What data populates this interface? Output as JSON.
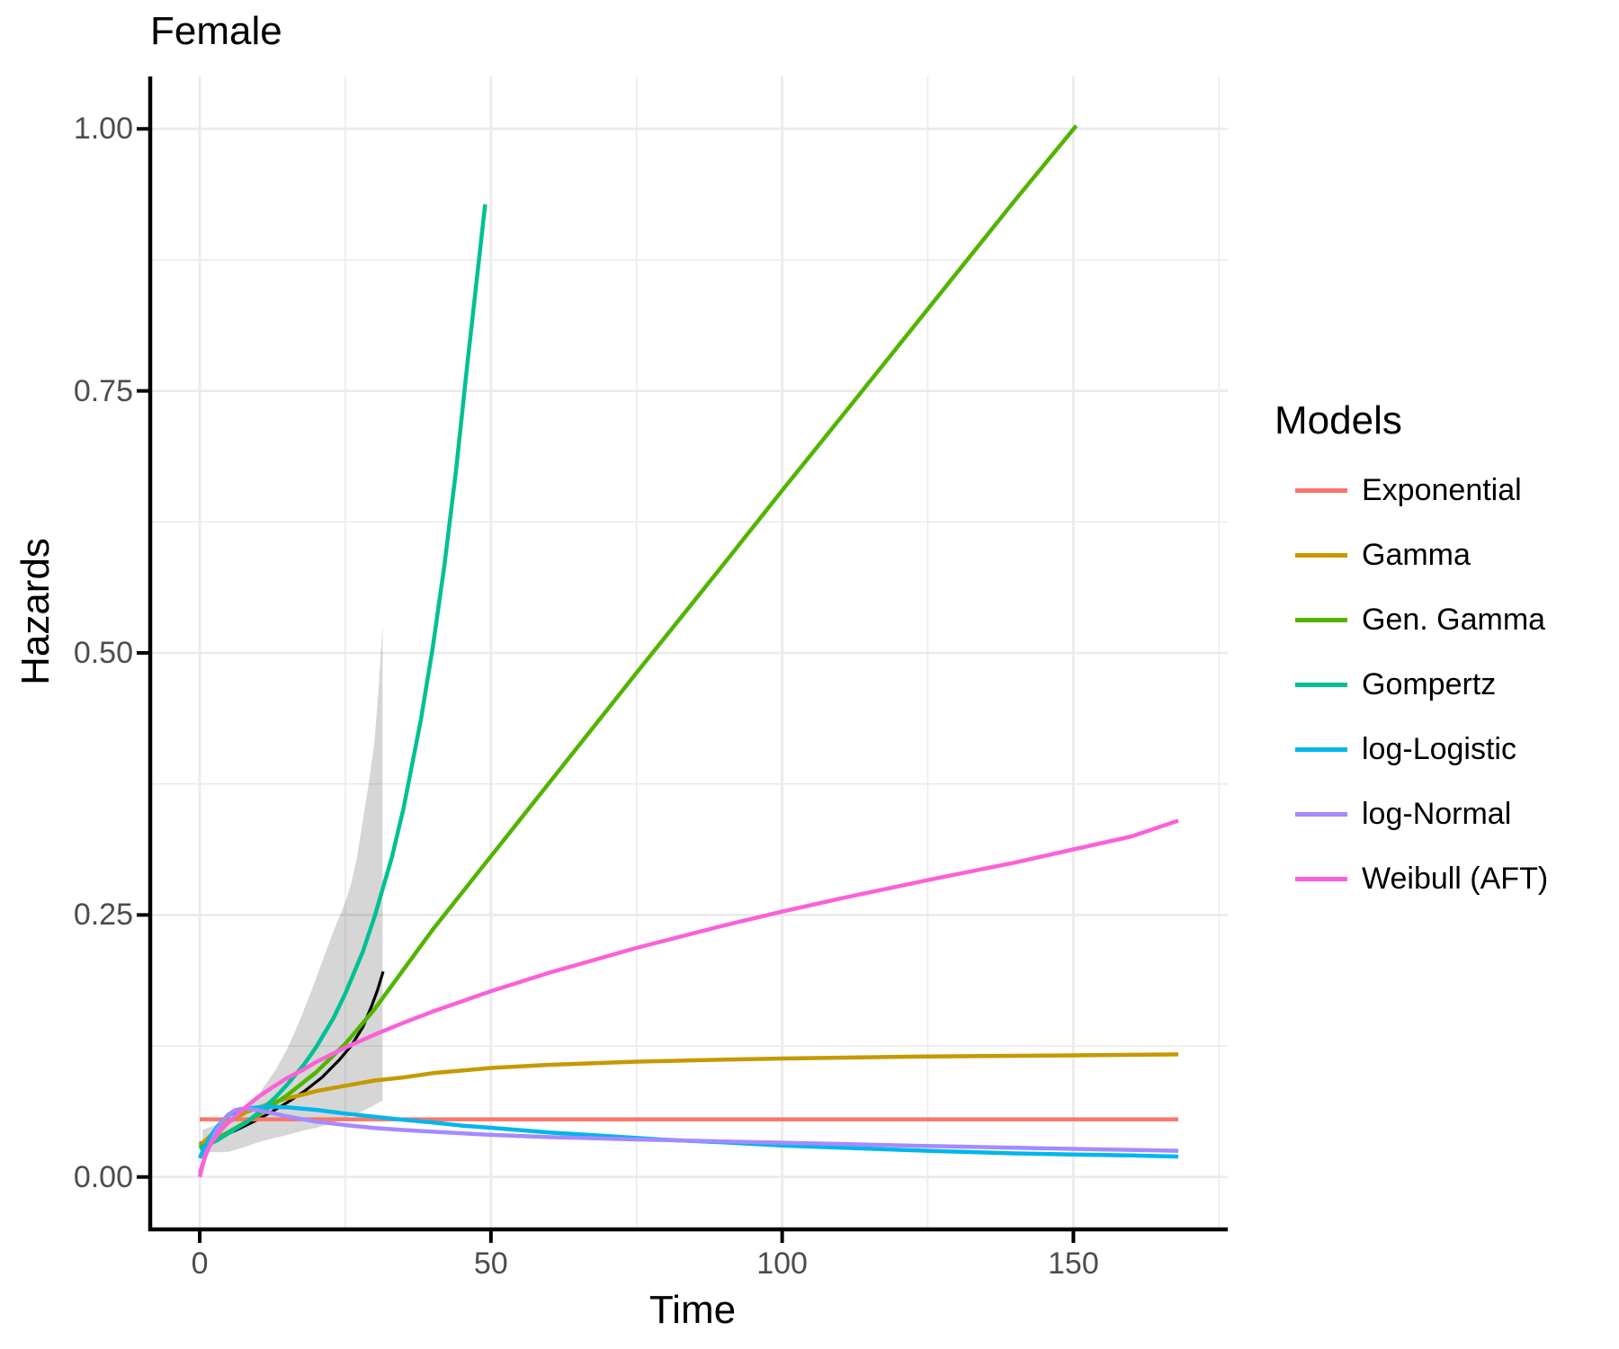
{
  "title": "Female",
  "x_axis": {
    "label": "Time",
    "ticks": [
      {
        "value": 0,
        "label": "0"
      },
      {
        "value": 50,
        "label": "50"
      },
      {
        "value": 100,
        "label": "100"
      },
      {
        "value": 150,
        "label": "150"
      }
    ],
    "minor_ticks": [
      25,
      75,
      125,
      175
    ]
  },
  "y_axis": {
    "label": "Hazards",
    "ticks": [
      {
        "value": 0,
        "label": "0.00"
      },
      {
        "value": 0.25,
        "label": "0.25"
      },
      {
        "value": 0.5,
        "label": "0.50"
      },
      {
        "value": 0.75,
        "label": "0.75"
      },
      {
        "value": 1.0,
        "label": "1.00"
      }
    ],
    "minor_ticks": [
      0.125,
      0.375,
      0.625,
      0.875
    ]
  },
  "legend": {
    "title": "Models",
    "entries": [
      {
        "label": "Exponential",
        "color": "#F8766D"
      },
      {
        "label": "Gamma",
        "color": "#C49A00"
      },
      {
        "label": "Gen. Gamma",
        "color": "#53B400"
      },
      {
        "label": "Gompertz",
        "color": "#00C094"
      },
      {
        "label": "log-Logistic",
        "color": "#00B6EB"
      },
      {
        "label": "log-Normal",
        "color": "#A58AFF"
      },
      {
        "label": "Weibull (AFT)",
        "color": "#FB61D7"
      }
    ]
  },
  "style": {
    "grid_color": "#EBEBEB",
    "axis_color": "#000000",
    "tick_label_color": "#4d4d4d",
    "panel_background": "#ffffff"
  },
  "chart_data": {
    "type": "line",
    "title": "Female",
    "xlabel": "Time",
    "ylabel": "Hazards",
    "xlim": [
      -8.5,
      176.5
    ],
    "ylim": [
      -0.05,
      1.05
    ],
    "x_ticks": [
      0,
      50,
      100,
      150
    ],
    "y_ticks": [
      0,
      0.25,
      0.5,
      0.75,
      1.0
    ],
    "grid": true,
    "legend_position": "right",
    "series": [
      {
        "name": "Exponential",
        "color": "#F8766D",
        "points": [
          [
            0,
            0.055
          ],
          [
            50,
            0.055
          ],
          [
            100,
            0.055
          ],
          [
            168,
            0.055
          ]
        ]
      },
      {
        "name": "Gamma",
        "color": "#C49A00",
        "points": [
          [
            0,
            0.03
          ],
          [
            2,
            0.04
          ],
          [
            4,
            0.049
          ],
          [
            6,
            0.056
          ],
          [
            8,
            0.062
          ],
          [
            10,
            0.066
          ],
          [
            12,
            0.07
          ],
          [
            15,
            0.075
          ],
          [
            18,
            0.079
          ],
          [
            20,
            0.082
          ],
          [
            25,
            0.087
          ],
          [
            30,
            0.092
          ],
          [
            35,
            0.095
          ],
          [
            40,
            0.099
          ],
          [
            50,
            0.104
          ],
          [
            60,
            0.107
          ],
          [
            75,
            0.11
          ],
          [
            90,
            0.112
          ],
          [
            100,
            0.113
          ],
          [
            125,
            0.115
          ],
          [
            150,
            0.116
          ],
          [
            168,
            0.117
          ]
        ]
      },
      {
        "name": "Gen. Gamma",
        "color": "#53B400",
        "points": [
          [
            0,
            0.028
          ],
          [
            5,
            0.043
          ],
          [
            10,
            0.059
          ],
          [
            15,
            0.078
          ],
          [
            20,
            0.1
          ],
          [
            25,
            0.127
          ],
          [
            30,
            0.16
          ],
          [
            35,
            0.198
          ],
          [
            40,
            0.236
          ],
          [
            50,
            0.306
          ],
          [
            60,
            0.376
          ],
          [
            75,
            0.481
          ],
          [
            90,
            0.585
          ],
          [
            100,
            0.655
          ],
          [
            110,
            0.724
          ],
          [
            125,
            0.828
          ],
          [
            140,
            0.932
          ],
          [
            150.5,
            1.003
          ]
        ]
      },
      {
        "name": "Gompertz",
        "color": "#00C094",
        "points": [
          [
            0,
            0.027
          ],
          [
            3,
            0.035
          ],
          [
            5,
            0.042
          ],
          [
            8,
            0.052
          ],
          [
            10,
            0.061
          ],
          [
            13,
            0.076
          ],
          [
            15,
            0.088
          ],
          [
            18,
            0.108
          ],
          [
            20,
            0.124
          ],
          [
            23,
            0.152
          ],
          [
            25,
            0.175
          ],
          [
            28,
            0.215
          ],
          [
            30,
            0.248
          ],
          [
            33,
            0.305
          ],
          [
            35,
            0.352
          ],
          [
            38,
            0.437
          ],
          [
            40,
            0.505
          ],
          [
            42,
            0.583
          ],
          [
            44,
            0.674
          ],
          [
            46,
            0.778
          ],
          [
            48,
            0.878
          ],
          [
            49,
            0.928
          ]
        ]
      },
      {
        "name": "log-Logistic",
        "color": "#00B6EB",
        "points": [
          [
            0,
            0.018
          ],
          [
            1,
            0.03
          ],
          [
            2,
            0.04
          ],
          [
            3,
            0.048
          ],
          [
            4,
            0.054
          ],
          [
            5,
            0.059
          ],
          [
            6,
            0.062
          ],
          [
            8,
            0.065
          ],
          [
            10,
            0.0665
          ],
          [
            12,
            0.067
          ],
          [
            15,
            0.0665
          ],
          [
            18,
            0.065
          ],
          [
            20,
            0.064
          ],
          [
            25,
            0.0605
          ],
          [
            30,
            0.0575
          ],
          [
            35,
            0.0545
          ],
          [
            40,
            0.052
          ],
          [
            45,
            0.049
          ],
          [
            50,
            0.047
          ],
          [
            60,
            0.0425
          ],
          [
            70,
            0.039
          ],
          [
            80,
            0.0355
          ],
          [
            90,
            0.033
          ],
          [
            100,
            0.03
          ],
          [
            110,
            0.028
          ],
          [
            125,
            0.025
          ],
          [
            140,
            0.0225
          ],
          [
            150,
            0.0215
          ],
          [
            160,
            0.0205
          ],
          [
            168,
            0.0195
          ]
        ]
      },
      {
        "name": "log-Normal",
        "color": "#A58AFF",
        "points": [
          [
            0,
            0.004
          ],
          [
            1,
            0.02
          ],
          [
            2,
            0.034
          ],
          [
            3,
            0.046
          ],
          [
            4,
            0.054
          ],
          [
            5,
            0.06
          ],
          [
            6,
            0.0635
          ],
          [
            7,
            0.065
          ],
          [
            8,
            0.0652
          ],
          [
            10,
            0.0638
          ],
          [
            12,
            0.0615
          ],
          [
            15,
            0.0578
          ],
          [
            20,
            0.0528
          ],
          [
            25,
            0.0495
          ],
          [
            30,
            0.0468
          ],
          [
            35,
            0.0448
          ],
          [
            40,
            0.0432
          ],
          [
            50,
            0.0402
          ],
          [
            60,
            0.038
          ],
          [
            75,
            0.0358
          ],
          [
            90,
            0.0338
          ],
          [
            100,
            0.0327
          ],
          [
            125,
            0.0295
          ],
          [
            150,
            0.0268
          ],
          [
            168,
            0.025
          ]
        ]
      },
      {
        "name": "Weibull (AFT)",
        "color": "#FB61D7",
        "points": [
          [
            0,
            0.0
          ],
          [
            1,
            0.0225
          ],
          [
            2,
            0.0325
          ],
          [
            3,
            0.0402
          ],
          [
            4,
            0.0468
          ],
          [
            5,
            0.0525
          ],
          [
            7,
            0.0625
          ],
          [
            10,
            0.0762
          ],
          [
            12,
            0.0838
          ],
          [
            15,
            0.0944
          ],
          [
            18,
            0.103
          ],
          [
            20,
            0.1098
          ],
          [
            25,
            0.1234
          ],
          [
            30,
            0.1358
          ],
          [
            35,
            0.1472
          ],
          [
            40,
            0.1578
          ],
          [
            50,
            0.1773
          ],
          [
            60,
            0.1949
          ],
          [
            75,
            0.2186
          ],
          [
            90,
            0.2399
          ],
          [
            100,
            0.2532
          ],
          [
            110,
            0.2657
          ],
          [
            125,
            0.2833
          ],
          [
            140,
            0.3
          ],
          [
            150,
            0.3125
          ],
          [
            160,
            0.325
          ],
          [
            168,
            0.34
          ]
        ]
      }
    ],
    "observed_hazard": {
      "color": "#000000",
      "points": [
        [
          0,
          0.032
        ],
        [
          3,
          0.037
        ],
        [
          6,
          0.044
        ],
        [
          9,
          0.052
        ],
        [
          12,
          0.061
        ],
        [
          15,
          0.071
        ],
        [
          18,
          0.082
        ],
        [
          21,
          0.095
        ],
        [
          24,
          0.112
        ],
        [
          26,
          0.125
        ],
        [
          28,
          0.143
        ],
        [
          29.5,
          0.163
        ],
        [
          30.5,
          0.178
        ],
        [
          31.5,
          0.196
        ]
      ]
    },
    "confidence_band": {
      "color": "#000000",
      "opacity": 0.16,
      "upper": [
        [
          0.5,
          0.045
        ],
        [
          3,
          0.05
        ],
        [
          5,
          0.056
        ],
        [
          8,
          0.068
        ],
        [
          10,
          0.078
        ],
        [
          13,
          0.102
        ],
        [
          15,
          0.122
        ],
        [
          17,
          0.147
        ],
        [
          19,
          0.175
        ],
        [
          20,
          0.19
        ],
        [
          21,
          0.205
        ],
        [
          23,
          0.235
        ],
        [
          25,
          0.262
        ],
        [
          26,
          0.28
        ],
        [
          27,
          0.305
        ],
        [
          28,
          0.34
        ],
        [
          29,
          0.375
        ],
        [
          30,
          0.415
        ],
        [
          30.7,
          0.465
        ],
        [
          31.4,
          0.527
        ]
      ],
      "lower": [
        [
          0.5,
          0.024
        ],
        [
          3,
          0.0235
        ],
        [
          5,
          0.024
        ],
        [
          8,
          0.029
        ],
        [
          10,
          0.033
        ],
        [
          13,
          0.0375
        ],
        [
          15,
          0.04
        ],
        [
          18,
          0.0445
        ],
        [
          20,
          0.047
        ],
        [
          23,
          0.052
        ],
        [
          25,
          0.056
        ],
        [
          27,
          0.06
        ],
        [
          28,
          0.063
        ],
        [
          29.5,
          0.067
        ],
        [
          31.4,
          0.073
        ]
      ]
    }
  }
}
